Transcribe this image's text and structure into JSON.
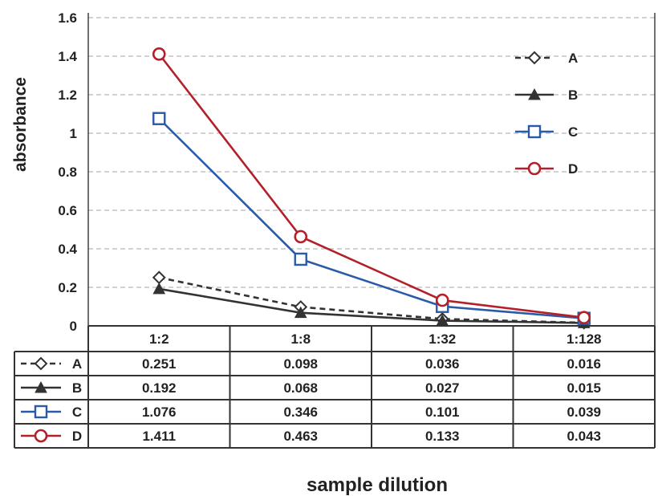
{
  "chart_data": {
    "type": "line",
    "xlabel": "sample dilution",
    "ylabel": "absorbance",
    "categories": [
      "1:2",
      "1:8",
      "1:32",
      "1:128"
    ],
    "yticks": [
      "0",
      "0.2",
      "0.4",
      "0.6",
      "0.8",
      "1",
      "1.2",
      "1.4",
      "1.6"
    ],
    "ylim": [
      0,
      1.6
    ],
    "grid": true,
    "legend_position": "top-right",
    "series": [
      {
        "name": "A",
        "values": [
          0.251,
          0.098,
          0.036,
          0.016
        ],
        "color": "#333333",
        "marker": "diamond-open",
        "dashed": true
      },
      {
        "name": "B",
        "values": [
          0.192,
          0.068,
          0.027,
          0.015
        ],
        "color": "#333333",
        "marker": "triangle-filled",
        "dashed": false
      },
      {
        "name": "C",
        "values": [
          1.076,
          0.346,
          0.101,
          0.039
        ],
        "color": "#2a5aa8",
        "marker": "square-open",
        "dashed": false
      },
      {
        "name": "D",
        "values": [
          1.411,
          0.463,
          0.133,
          0.043
        ],
        "color": "#b3202a",
        "marker": "circle-open",
        "dashed": false
      }
    ],
    "table_values": [
      [
        "0.251",
        "0.098",
        "0.036",
        "0.016"
      ],
      [
        "0.192",
        "0.068",
        "0.027",
        "0.015"
      ],
      [
        "1.076",
        "0.346",
        "0.101",
        "0.039"
      ],
      [
        "1.411",
        "0.463",
        "0.133",
        "0.043"
      ]
    ]
  }
}
